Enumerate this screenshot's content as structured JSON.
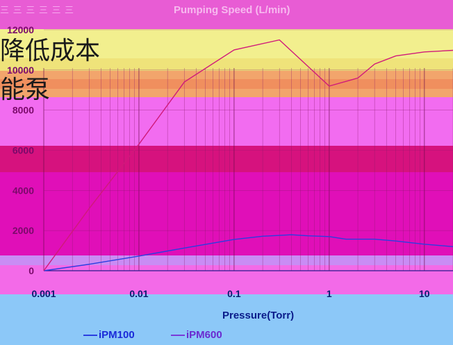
{
  "header": {
    "faint_text": "三 三 三 三 三 三",
    "chart_title": "Pumping Speed (L/min)"
  },
  "overlay": {
    "line1": "降低成本",
    "line2": "能泵"
  },
  "chart_data": {
    "type": "line",
    "title": "Pumping Speed (L/min)",
    "xlabel": "Pressure(Torr)",
    "ylabel": "",
    "x_scale": "log",
    "xlim": [
      0.001,
      20
    ],
    "ylim": [
      0,
      12000
    ],
    "x_ticks": [
      "0.001",
      "0.01",
      "0.1",
      "1",
      "10"
    ],
    "y_ticks": [
      "0",
      "2000",
      "4000",
      "6000",
      "8000",
      "10000",
      "12000"
    ],
    "grid": true,
    "legend_position": "bottom",
    "series": [
      {
        "name": "iPM100",
        "color": "#2a3ee0",
        "points": [
          [
            0.001,
            0
          ],
          [
            0.003,
            320
          ],
          [
            0.01,
            730
          ],
          [
            0.03,
            1130
          ],
          [
            0.1,
            1560
          ],
          [
            0.2,
            1720
          ],
          [
            0.4,
            1790
          ],
          [
            0.6,
            1740
          ],
          [
            1,
            1700
          ],
          [
            1.5,
            1570
          ],
          [
            3,
            1570
          ],
          [
            5,
            1480
          ],
          [
            10,
            1320
          ],
          [
            20,
            1200
          ]
        ]
      },
      {
        "name": "iPM600",
        "color": "#d01a7a",
        "points": [
          [
            0.001,
            0
          ],
          [
            0.003,
            3100
          ],
          [
            0.01,
            6300
          ],
          [
            0.03,
            9400
          ],
          [
            0.1,
            11000
          ],
          [
            0.3,
            11500
          ],
          [
            1,
            9200
          ],
          [
            2,
            9600
          ],
          [
            3,
            10300
          ],
          [
            5,
            10700
          ],
          [
            10,
            10900
          ],
          [
            20,
            10980
          ],
          [
            40,
            10950
          ]
        ]
      }
    ]
  }
}
